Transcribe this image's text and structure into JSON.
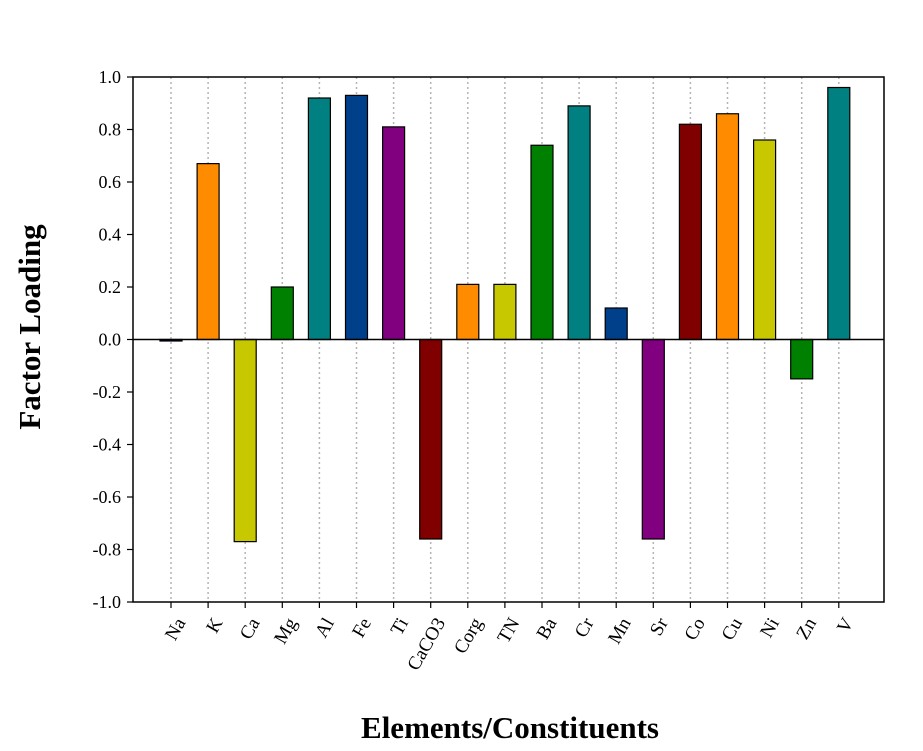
{
  "chart_data": {
    "type": "bar",
    "title": "",
    "xlabel": "Elements/Constituents",
    "ylabel": "Factor Loading",
    "ylim": [
      -1.0,
      1.0
    ],
    "yticks": [
      "-1.0",
      "-0.8",
      "-0.6",
      "-0.4",
      "-0.2",
      "0.0",
      "0.2",
      "0.4",
      "0.6",
      "0.8",
      "1.0"
    ],
    "grid": "vertical dotted",
    "legend": "none",
    "categories": [
      "Na",
      "K",
      "Ca",
      "Mg",
      "Al",
      "Fe",
      "Ti",
      "CaCO3",
      "Corg",
      "TN",
      "Ba",
      "Cr",
      "Mn",
      "Sr",
      "Co",
      "Cu",
      "Ni",
      "Zn",
      "V"
    ],
    "values": [
      0.0,
      0.67,
      -0.77,
      0.2,
      0.92,
      0.93,
      0.81,
      -0.76,
      0.21,
      0.21,
      0.74,
      0.89,
      0.12,
      -0.76,
      0.82,
      0.86,
      0.76,
      -0.15,
      0.96
    ],
    "colors": [
      "#00008b",
      "#ff8c00",
      "#c8c800",
      "#008000",
      "#008080",
      "#003f8a",
      "#800080",
      "#800000",
      "#ff8c00",
      "#c8c800",
      "#008000",
      "#008080",
      "#003f8a",
      "#800080",
      "#800000",
      "#ff8c00",
      "#c8c800",
      "#008000",
      "#008080"
    ]
  }
}
